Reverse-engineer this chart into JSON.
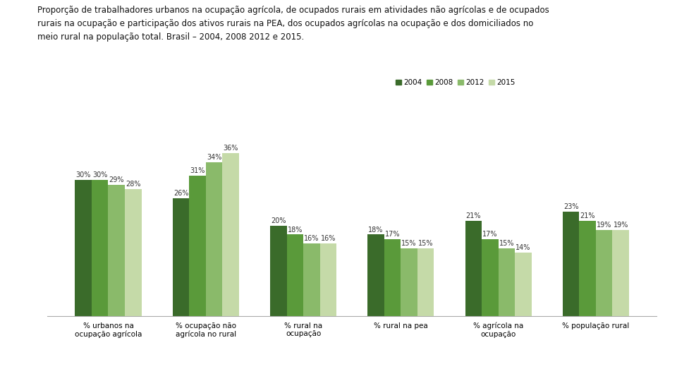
{
  "title": "Proporção de trabalhadores urbanos na ocupação agrícola, de ocupados rurais em atividades não agrícolas e de ocupados\nrurais na ocupação e participação dos ativos rurais na PEA, dos ocupados agrícolas na ocupação e dos domiciliados no\nmeio rural na população total. Brasil – 2004, 2008 2012 e 2015.",
  "categories": [
    "% urbanos na\nocupação agrícola",
    "% ocupação não\nagrícola no rural",
    "% rural na\nocupação",
    "% rural na pea",
    "% agrícola na\nocupação",
    "% população rural"
  ],
  "series": [
    "2004",
    "2008",
    "2012",
    "2015"
  ],
  "values": [
    [
      30,
      30,
      29,
      28
    ],
    [
      26,
      31,
      34,
      36
    ],
    [
      20,
      18,
      16,
      16
    ],
    [
      18,
      17,
      15,
      15
    ],
    [
      21,
      17,
      15,
      14
    ],
    [
      23,
      21,
      19,
      19
    ]
  ],
  "colors": [
    "#3a6b2a",
    "#5a9a3a",
    "#8aba6a",
    "#c5daa8"
  ],
  "background_color": "#ffffff",
  "bar_width": 0.17,
  "label_fontsize": 7.0,
  "legend_fontsize": 7.5,
  "title_fontsize": 8.5,
  "tick_fontsize": 7.5,
  "ylim": [
    0,
    42
  ]
}
